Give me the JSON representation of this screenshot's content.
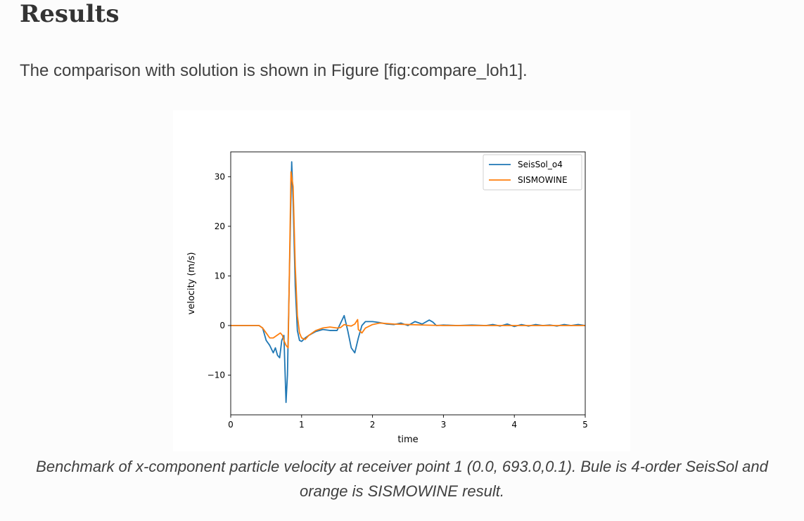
{
  "section": {
    "title": "Results",
    "paragraph": "The comparison with solution is shown in Figure [fig:compare_loh1]."
  },
  "caption": "Benchmark of x-component particle velocity at receiver point 1 (0.0, 693.0,0.1). Bule is 4-order SeisSol and orange is SISMOWINE result.",
  "chart_data": {
    "type": "line",
    "title": "",
    "xlabel": "time",
    "ylabel": "velocity (m/s)",
    "xlim": [
      0,
      5
    ],
    "ylim": [
      -18,
      35
    ],
    "x_ticks": [
      0,
      1,
      2,
      3,
      4,
      5
    ],
    "y_ticks": [
      -10,
      0,
      10,
      20,
      30
    ],
    "x_tick_labels": [
      "0",
      "1",
      "2",
      "3",
      "4",
      "5"
    ],
    "y_tick_labels": [
      "−10",
      "0",
      "10",
      "20",
      "30"
    ],
    "grid": false,
    "legend_position": "upper-right",
    "series": [
      {
        "name": "SeisSol_o4",
        "color": "#1f77b4",
        "x": [
          0,
          0.2,
          0.4,
          0.45,
          0.5,
          0.55,
          0.6,
          0.63,
          0.66,
          0.69,
          0.72,
          0.75,
          0.78,
          0.8,
          0.83,
          0.86,
          0.88,
          0.91,
          0.94,
          0.97,
          1.0,
          1.05,
          1.1,
          1.2,
          1.3,
          1.4,
          1.5,
          1.55,
          1.6,
          1.65,
          1.7,
          1.75,
          1.8,
          1.85,
          1.9,
          1.95,
          2.0,
          2.1,
          2.2,
          2.3,
          2.4,
          2.5,
          2.6,
          2.7,
          2.8,
          2.85,
          2.9,
          3.0,
          3.2,
          3.4,
          3.6,
          3.7,
          3.8,
          3.9,
          4.0,
          4.1,
          4.2,
          4.3,
          4.4,
          4.5,
          4.6,
          4.7,
          4.8,
          4.9,
          5.0
        ],
        "y": [
          0,
          0,
          0,
          -0.5,
          -3,
          -4,
          -5.5,
          -4.5,
          -6,
          -6.5,
          -3,
          -2,
          -15.5,
          -10,
          12,
          33,
          25,
          8,
          -1,
          -3,
          -3.2,
          -2.5,
          -2,
          -1.2,
          -0.8,
          -1,
          -1,
          0.5,
          2,
          -1,
          -4.5,
          -5.5,
          -2.5,
          0,
          0.8,
          0.8,
          0.8,
          0.6,
          0.3,
          0.2,
          0.5,
          0,
          0.8,
          0.3,
          1.1,
          0.7,
          0,
          0.1,
          0,
          0.1,
          0,
          0.2,
          -0.1,
          0.3,
          -0.2,
          0.2,
          -0.1,
          0.2,
          0,
          0.1,
          -0.1,
          0.2,
          0,
          0.2,
          0
        ]
      },
      {
        "name": "SISMOWINE",
        "color": "#ff7f0e",
        "x": [
          0,
          0.2,
          0.4,
          0.45,
          0.5,
          0.55,
          0.6,
          0.65,
          0.7,
          0.73,
          0.75,
          0.78,
          0.81,
          0.83,
          0.85,
          0.88,
          0.91,
          0.94,
          0.97,
          1.0,
          1.05,
          1.1,
          1.2,
          1.3,
          1.4,
          1.5,
          1.55,
          1.6,
          1.65,
          1.7,
          1.75,
          1.79,
          1.8,
          1.85,
          1.9,
          2.0,
          2.1,
          2.2,
          2.3,
          2.5,
          2.7,
          3.0,
          3.5,
          4.0,
          4.5,
          5.0
        ],
        "y": [
          0,
          0,
          0,
          -0.5,
          -1.5,
          -2.5,
          -2.5,
          -2,
          -1.5,
          -2,
          -3,
          -4,
          -4.5,
          13,
          31,
          28,
          12,
          2,
          -1.5,
          -2.5,
          -2.8,
          -2,
          -1,
          -0.5,
          -0.3,
          -0.5,
          -0.4,
          0.2,
          0,
          -0.1,
          0.3,
          1.2,
          -0.8,
          -1.5,
          -0.5,
          0.2,
          0.5,
          0.4,
          0.3,
          0.2,
          0.1,
          0,
          0,
          0,
          0,
          0
        ]
      }
    ]
  }
}
